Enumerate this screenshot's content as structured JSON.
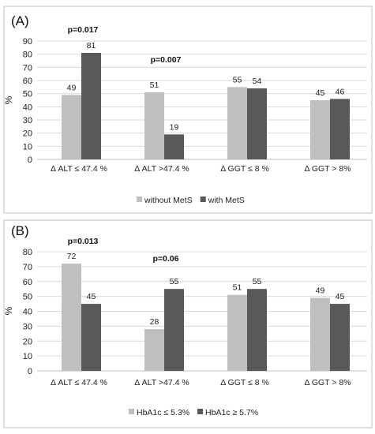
{
  "colors": {
    "light": "#bfbfbf",
    "dark": "#595959",
    "grid": "#d9d9d9",
    "axis": "#bfbfbf",
    "border": "#bfbfbf"
  },
  "chart_data": [
    {
      "type": "bar",
      "panel_label": "(A)",
      "ylabel": "%",
      "ylim": [
        0,
        90
      ],
      "yticks": [
        0,
        10,
        20,
        30,
        40,
        50,
        60,
        70,
        80,
        90
      ],
      "categories": [
        "Δ ALT ≤ 47.4 %",
        "Δ ALT >47.4 %",
        "Δ GGT ≤ 8 %",
        "Δ GGT > 8%"
      ],
      "series": [
        {
          "name": "without MetS",
          "values": [
            49,
            51,
            55,
            45
          ]
        },
        {
          "name": "with MetS",
          "values": [
            81,
            19,
            54,
            46
          ]
        }
      ],
      "annotations": [
        {
          "text": "p=0.017",
          "category": 0
        },
        {
          "text": "p=0.007",
          "category": 1
        }
      ],
      "grid": true,
      "legend_position": "bottom"
    },
    {
      "type": "bar",
      "panel_label": "(B)",
      "ylabel": "%",
      "ylim": [
        0,
        80
      ],
      "yticks": [
        0,
        10,
        20,
        30,
        40,
        50,
        60,
        70,
        80
      ],
      "categories": [
        "Δ  ALT ≤ 47.4 %",
        "Δ ALT >47.4 %",
        "Δ GGT ≤ 8 %",
        "Δ GGT > 8%"
      ],
      "series": [
        {
          "name": "HbA1c  ≤ 5.3%",
          "values": [
            72,
            28,
            51,
            49
          ]
        },
        {
          "name": "HbA1c ≥ 5.7%",
          "values": [
            45,
            55,
            55,
            45
          ]
        }
      ],
      "annotations": [
        {
          "text": "p=0.013",
          "category": 0
        },
        {
          "text": "p=0.06",
          "category": 1
        }
      ],
      "grid": true,
      "legend_position": "bottom"
    }
  ]
}
